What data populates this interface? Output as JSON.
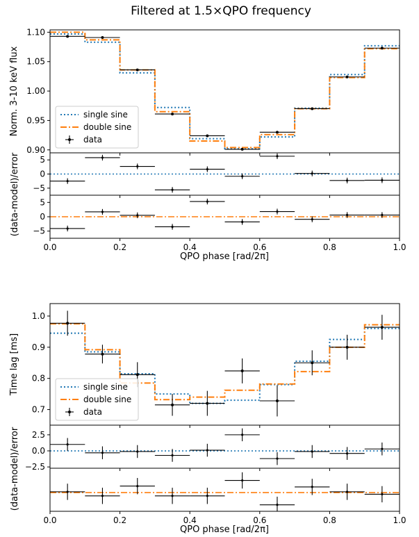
{
  "figure": {
    "title": "Filtered at 1.5×QPO frequency",
    "xlabel_top": "QPO phase [rad/2π]",
    "xlabel_bottom": "QPO phase [rad/2π]",
    "residual_ylabel_top": "(data-model)/error",
    "residual_ylabel_bottom": "(data-model)/error",
    "colors": {
      "single": "#1f77b4",
      "double": "#ff7f0e",
      "data": "#000000"
    },
    "legend_top": [
      "single sine",
      "double sine",
      "data"
    ],
    "legend_bottom": [
      "single sine",
      "double sine",
      "data"
    ]
  },
  "chart_data": [
    {
      "type": "line",
      "title": "Filtered at 1.5×QPO frequency",
      "ylabel": "Norm. 3-10 keV flux",
      "xlabel": "",
      "xlim": [
        0,
        1
      ],
      "ylim": [
        0.895,
        1.104
      ],
      "yticks": [
        0.9,
        0.95,
        1.0,
        1.05,
        1.1
      ],
      "ytick_labels": [
        "0.90",
        "0.95",
        "1.00",
        "1.05",
        "1.10"
      ],
      "legend_position": "lower left",
      "x": [
        0.05,
        0.15,
        0.25,
        0.35,
        0.45,
        0.55,
        0.65,
        0.75,
        0.85,
        0.95
      ],
      "series": [
        {
          "name": "single sine",
          "style": "dotted step",
          "values": [
            1.097,
            1.083,
            1.031,
            0.972,
            0.919,
            0.902,
            0.922,
            0.971,
            1.028,
            1.077
          ]
        },
        {
          "name": "double sine",
          "style": "dash-dot step",
          "values": [
            1.1,
            1.087,
            1.036,
            0.965,
            0.915,
            0.904,
            0.926,
            0.97,
            1.023,
            1.072
          ]
        },
        {
          "name": "data",
          "style": "errorbar",
          "values": [
            1.093,
            1.091,
            1.036,
            0.961,
            0.924,
            0.901,
            0.93,
            0.97,
            1.024,
            1.073
          ],
          "xerr": 0.05,
          "yerr": 0.0015
        }
      ]
    },
    {
      "type": "scatter",
      "ylabel": "(data-model)/error",
      "xlim": [
        0,
        1
      ],
      "ylim": [
        -7.5,
        7.5
      ],
      "yticks": [
        -5,
        0,
        5
      ],
      "ytick_labels": [
        "−5",
        "0",
        "5"
      ],
      "x": [
        0.05,
        0.15,
        0.25,
        0.35,
        0.45,
        0.55,
        0.65,
        0.75,
        0.85,
        0.95
      ],
      "series": [
        {
          "name": "single sine",
          "values": [
            -2.5,
            5.8,
            2.7,
            -5.6,
            1.7,
            -0.8,
            6.3,
            0.2,
            -2.3,
            -2.2
          ],
          "yerr": 1
        }
      ]
    },
    {
      "type": "scatter",
      "ylabel": "(data-model)/error",
      "xlim": [
        0,
        1
      ],
      "ylim": [
        -7.5,
        7.5
      ],
      "yticks": [
        -5,
        0,
        5
      ],
      "ytick_labels": [
        "−5",
        "0",
        "5"
      ],
      "x": [
        0.05,
        0.15,
        0.25,
        0.35,
        0.45,
        0.55,
        0.65,
        0.75,
        0.85,
        0.95
      ],
      "series": [
        {
          "name": "double sine",
          "values": [
            -4.1,
            1.7,
            0.5,
            -3.5,
            5.3,
            -1.8,
            1.8,
            -0.9,
            0.6,
            0.6
          ],
          "yerr": 1
        }
      ]
    },
    {
      "type": "line",
      "ylabel": "Time lag [ms]",
      "xlabel": "",
      "xlim": [
        0,
        1
      ],
      "ylim": [
        0.65,
        1.04
      ],
      "yticks": [
        0.7,
        0.8,
        0.9,
        1.0
      ],
      "ytick_labels": [
        "0.7",
        "0.8",
        "0.9",
        "1.0"
      ],
      "legend_position": "lower left",
      "x": [
        0.05,
        0.15,
        0.25,
        0.35,
        0.45,
        0.55,
        0.65,
        0.75,
        0.85,
        0.95
      ],
      "series": [
        {
          "name": "single sine",
          "style": "dotted step",
          "values": [
            0.945,
            0.885,
            0.815,
            0.75,
            0.72,
            0.73,
            0.78,
            0.855,
            0.925,
            0.96
          ]
        },
        {
          "name": "double sine",
          "style": "dash-dot step",
          "values": [
            0.975,
            0.892,
            0.785,
            0.732,
            0.74,
            0.762,
            0.782,
            0.822,
            0.9,
            0.972
          ]
        },
        {
          "name": "data",
          "style": "errorbar",
          "values": [
            0.977,
            0.878,
            0.812,
            0.715,
            0.72,
            0.824,
            0.728,
            0.85,
            0.9,
            0.964
          ],
          "xerr": 0.05,
          "yerr": [
            0.04,
            0.03,
            0.04,
            0.035,
            0.04,
            0.04,
            0.05,
            0.04,
            0.04,
            0.04
          ]
        }
      ]
    },
    {
      "type": "scatter",
      "ylabel": "(data-model)/error",
      "xlim": [
        0,
        1
      ],
      "ylim": [
        -2.7,
        4.0
      ],
      "yticks": [
        -2.5,
        0.0,
        2.5
      ],
      "ytick_labels": [
        "−2.5",
        "0.0",
        "2.5"
      ],
      "x": [
        0.05,
        0.15,
        0.25,
        0.35,
        0.45,
        0.55,
        0.65,
        0.75,
        0.85,
        0.95
      ],
      "series": [
        {
          "name": "single sine",
          "values": [
            1.0,
            -0.3,
            -0.1,
            -0.7,
            0.1,
            2.5,
            -1.2,
            -0.1,
            -0.4,
            0.3
          ],
          "yerr": 1
        }
      ]
    },
    {
      "type": "scatter",
      "ylabel": "(data-model)/error",
      "xlim": [
        0,
        1
      ],
      "ylim": [
        -2.3,
        3.0
      ],
      "yticks": [],
      "ytick_labels": [],
      "xticks": [
        0.0,
        0.2,
        0.4,
        0.6,
        0.8,
        1.0
      ],
      "xtick_labels": [
        "0.0",
        "0.2",
        "0.4",
        "0.6",
        "0.8",
        "1.0"
      ],
      "x": [
        0.05,
        0.15,
        0.25,
        0.35,
        0.45,
        0.55,
        0.65,
        0.75,
        0.85,
        0.95
      ],
      "series": [
        {
          "name": "double sine",
          "values": [
            0.1,
            -0.4,
            0.8,
            -0.4,
            -0.4,
            1.5,
            -1.5,
            0.7,
            0.1,
            -0.2
          ],
          "yerr": 1
        }
      ]
    }
  ]
}
